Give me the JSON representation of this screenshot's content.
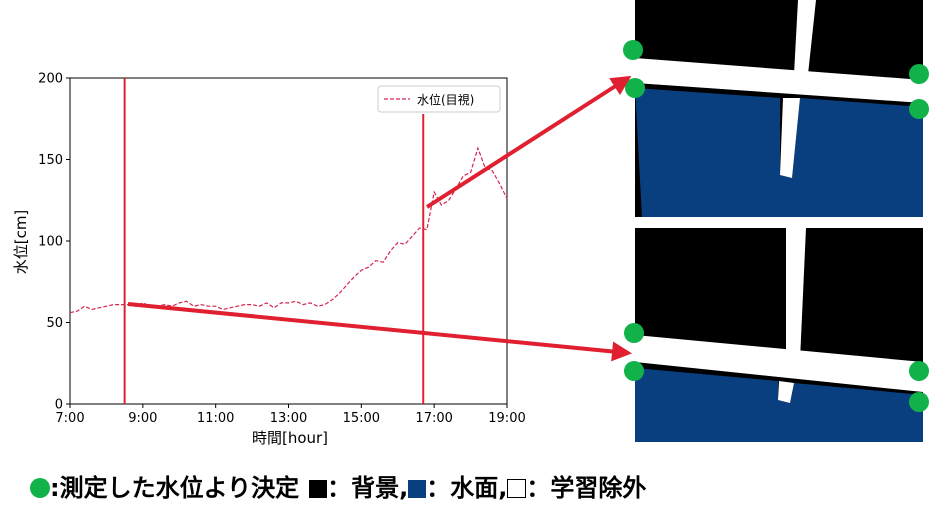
{
  "chart_data": {
    "type": "line",
    "xlabel": "時間[hour]",
    "ylabel": "水位[cm]",
    "x_ticks": [
      "7:00",
      "9:00",
      "11:00",
      "13:00",
      "15:00",
      "17:00",
      "19:00"
    ],
    "y_ticks": [
      "0",
      "50",
      "100",
      "150",
      "200"
    ],
    "xlim": [
      7,
      19
    ],
    "ylim": [
      0,
      200
    ],
    "grid": false,
    "legend": "top-right",
    "series": [
      {
        "name": "水位(目視)",
        "color": "#d6244f",
        "linestyle": "dashed",
        "x": [
          7.0,
          7.2,
          7.4,
          7.6,
          7.8,
          8.0,
          8.2,
          8.4,
          8.6,
          8.8,
          9.0,
          9.2,
          9.4,
          9.6,
          9.8,
          10.0,
          10.2,
          10.4,
          10.6,
          10.8,
          11.0,
          11.2,
          11.4,
          11.6,
          11.8,
          12.0,
          12.2,
          12.4,
          12.6,
          12.8,
          13.0,
          13.2,
          13.4,
          13.6,
          13.8,
          14.0,
          14.2,
          14.4,
          14.6,
          14.8,
          15.0,
          15.2,
          15.4,
          15.6,
          15.8,
          16.0,
          16.2,
          16.4,
          16.6,
          16.8,
          17.0,
          17.2,
          17.4,
          17.6,
          17.8,
          18.0,
          18.2,
          18.4,
          18.6,
          18.8,
          19.0
        ],
        "y": [
          56,
          57,
          60,
          58,
          59,
          60,
          61,
          61,
          61,
          60,
          62,
          60,
          60,
          61,
          60,
          62,
          63,
          60,
          61,
          60,
          60,
          58,
          59,
          60,
          61,
          61,
          60,
          62,
          59,
          62,
          62,
          63,
          61,
          62,
          60,
          61,
          64,
          68,
          73,
          78,
          82,
          84,
          88,
          87,
          94,
          99,
          98,
          103,
          108,
          107,
          130,
          122,
          125,
          132,
          140,
          142,
          157,
          145,
          143,
          135,
          126
        ]
      }
    ],
    "vertical_lines": [
      {
        "x": 8.5,
        "color": "#e02030"
      },
      {
        "x": 16.7,
        "color": "#e02030"
      }
    ]
  },
  "colors": {
    "marker_green": "#12b24a",
    "water_blue": "#0a3f7f",
    "background_black": "#000000",
    "arrow_red": "#e02030"
  },
  "caption": {
    "point_label": ":測定した水位より決定",
    "background_label": "：背景,",
    "water_label": "：水面,",
    "excluded_label": "：学習除外"
  },
  "panels": [
    {
      "name": "mask-high-water"
    },
    {
      "name": "mask-low-water"
    }
  ]
}
